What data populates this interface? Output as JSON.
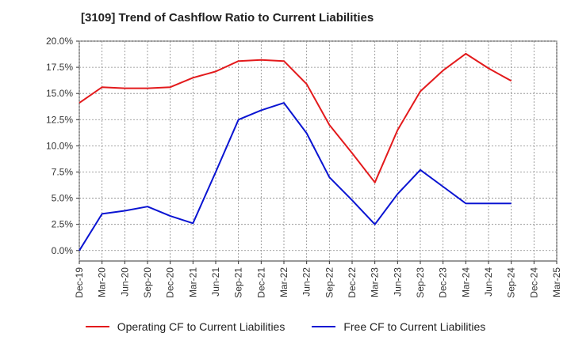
{
  "title": "[3109]  Trend of Cashflow Ratio to Current Liabilities",
  "chart_data": {
    "type": "line",
    "title": "[3109]  Trend of Cashflow Ratio to Current Liabilities",
    "xlabel": "",
    "ylabel": "",
    "x": [
      "Dec-19",
      "Mar-20",
      "Jun-20",
      "Sep-20",
      "Dec-20",
      "Mar-21",
      "Jun-21",
      "Sep-21",
      "Dec-21",
      "Mar-22",
      "Jun-22",
      "Sep-22",
      "Dec-22",
      "Mar-23",
      "Jun-23",
      "Sep-23",
      "Dec-23",
      "Mar-24",
      "Jun-24",
      "Sep-24",
      "Dec-24",
      "Mar-25"
    ],
    "ylim": [
      -1.0,
      20.0
    ],
    "yticks": [
      "0.0%",
      "2.5%",
      "5.0%",
      "7.5%",
      "10.0%",
      "12.5%",
      "15.0%",
      "17.5%",
      "20.0%"
    ],
    "ytick_values": [
      0,
      2.5,
      5,
      7.5,
      10,
      12.5,
      15,
      17.5,
      20
    ],
    "grid": true,
    "legend_position": "bottom",
    "series": [
      {
        "name": "Operating CF to Current Liabilities",
        "color": "#e31a1c",
        "values": [
          14.1,
          15.6,
          15.5,
          15.5,
          15.6,
          16.5,
          17.1,
          18.1,
          18.2,
          18.1,
          15.9,
          12.0,
          9.3,
          6.5,
          11.5,
          15.2,
          17.2,
          18.8,
          17.4,
          16.2,
          null,
          null
        ]
      },
      {
        "name": "Free CF to Current Liabilities",
        "color": "#0a14d2",
        "values": [
          0.0,
          3.5,
          3.8,
          4.2,
          3.3,
          2.6,
          7.5,
          12.5,
          13.4,
          14.1,
          11.2,
          7.0,
          4.8,
          2.5,
          5.4,
          7.7,
          6.1,
          4.5,
          4.5,
          4.5,
          null,
          null
        ]
      }
    ]
  }
}
